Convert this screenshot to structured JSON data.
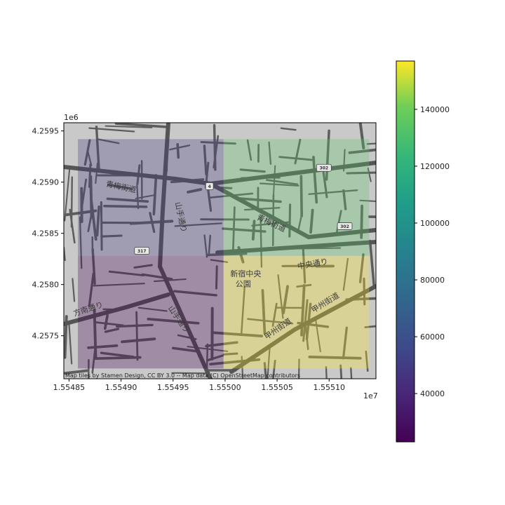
{
  "chart_data": {
    "type": "heatmap",
    "x_axis": {
      "tick_labels": [
        "1.55485",
        "1.55490",
        "1.55495",
        "1.55500",
        "1.55505",
        "1.55510"
      ],
      "ticks": [
        15548500,
        15549000,
        15549500,
        15550000,
        15550500,
        15551000
      ],
      "offset_label": "1e7",
      "range": [
        15548450,
        15551450
      ]
    },
    "y_axis": {
      "tick_labels": [
        "4.2575",
        "4.2580",
        "4.2585",
        "4.2590",
        "4.2595"
      ],
      "ticks": [
        4257500,
        4258000,
        4258500,
        4259000,
        4259500
      ],
      "offset_label": "1e6",
      "range": [
        4257080,
        4259580
      ]
    },
    "colormap": "viridis",
    "cell_alpha": 0.3,
    "colorbar": {
      "range": [
        23000,
        157000
      ],
      "tick_labels": [
        "40000",
        "60000",
        "80000",
        "100000",
        "120000",
        "140000"
      ],
      "ticks": [
        40000,
        60000,
        80000,
        100000,
        120000,
        140000
      ]
    },
    "cells": [
      {
        "x0": 15548585,
        "x1": 15549985,
        "y0": 4258280,
        "y1": 4259420,
        "value": 45000
      },
      {
        "x0": 15549985,
        "x1": 15551385,
        "y0": 4258280,
        "y1": 4259420,
        "value": 122000
      },
      {
        "x0": 15548585,
        "x1": 15549985,
        "y0": 4257180,
        "y1": 4258280,
        "value": 23000
      },
      {
        "x0": 15549985,
        "x1": 15551385,
        "y0": 4257180,
        "y1": 4258280,
        "value": 157000
      }
    ]
  },
  "basemap": {
    "attribution": "Map tiles by Stamen Design, CC BY 3.0 -- Map data (C) OpenStreetMap contributors",
    "labels": [
      {
        "text": "青梅街道",
        "x": 15548850,
        "y": 4258960,
        "rotate": 12
      },
      {
        "text": "青梅街道",
        "x": 15550300,
        "y": 4258640,
        "rotate": 25
      },
      {
        "text": "山手通り",
        "x": 15549520,
        "y": 4258800,
        "rotate": 78
      },
      {
        "text": "山手通り",
        "x": 15549450,
        "y": 4257770,
        "rotate": 55
      },
      {
        "text": "方南通り",
        "x": 15548550,
        "y": 4257690,
        "rotate": -18
      },
      {
        "text": "新宿中央",
        "x": 15550050,
        "y": 4258080,
        "rotate": 0
      },
      {
        "text": "公園",
        "x": 15550100,
        "y": 4257980,
        "rotate": 0
      },
      {
        "text": "中央通り",
        "x": 15550700,
        "y": 4258150,
        "rotate": -10
      },
      {
        "text": "甲州街道",
        "x": 15550850,
        "y": 4257720,
        "rotate": -32
      },
      {
        "text": "甲州街道",
        "x": 15550400,
        "y": 4257460,
        "rotate": -35
      }
    ],
    "route_shields": [
      {
        "text": "302",
        "x": 15550950,
        "y": 4259140
      },
      {
        "text": "302",
        "x": 15551150,
        "y": 4258570
      },
      {
        "text": "4",
        "x": 15549850,
        "y": 4258960
      },
      {
        "text": "317",
        "x": 15549200,
        "y": 4258330
      }
    ]
  }
}
